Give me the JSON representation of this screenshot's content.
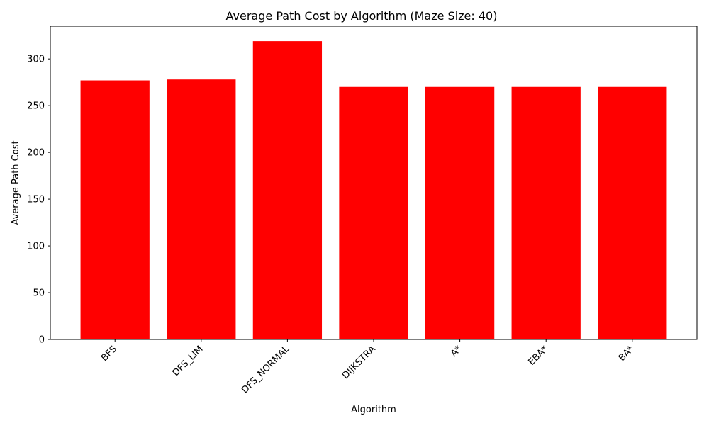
{
  "chart_data": {
    "type": "bar",
    "title": "Average Path Cost by Algorithm (Maze Size: 40)",
    "xlabel": "Algorithm",
    "ylabel": "Average Path Cost",
    "categories": [
      "BFS",
      "DFS_LIM",
      "DFS_NORMAL",
      "DIJKSTRA",
      "A*",
      "EBA*",
      "BA*"
    ],
    "values": [
      277,
      278,
      319,
      270,
      270,
      270,
      270
    ],
    "ylim": [
      0,
      335
    ],
    "yticks": [
      0,
      50,
      100,
      150,
      200,
      250,
      300
    ],
    "bar_color": "#ff0000",
    "grid": false,
    "legend": "none",
    "xtick_rotation_deg": 45
  }
}
